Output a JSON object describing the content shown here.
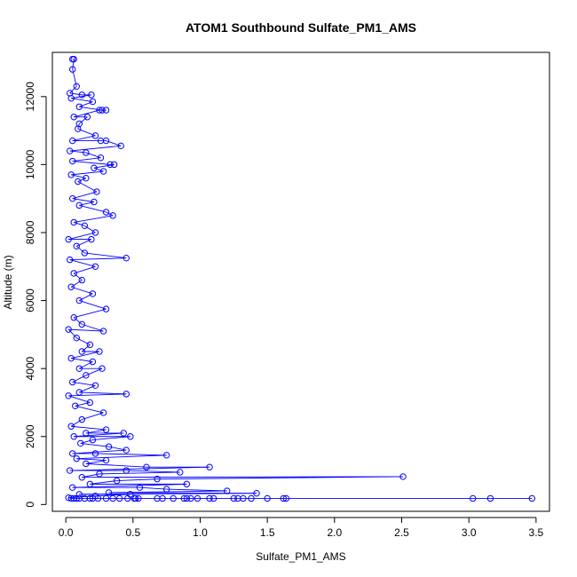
{
  "chart_data": {
    "type": "line",
    "title": "ATOM1 Southbound Sulfate_PM1_AMS",
    "xlabel": "Sulfate_PM1_AMS",
    "ylabel": "Altitude (m)",
    "xlim": [
      -0.1,
      3.6
    ],
    "ylim": [
      -200,
      13300
    ],
    "x_ticks": [
      0.0,
      0.5,
      1.0,
      1.5,
      2.0,
      2.5,
      3.0,
      3.5
    ],
    "x_tick_labels": [
      "0.0",
      "0.5",
      "1.0",
      "1.5",
      "2.0",
      "2.5",
      "3.0",
      "3.5"
    ],
    "y_ticks": [
      0,
      2000,
      4000,
      6000,
      8000,
      10000,
      12000
    ],
    "y_tick_labels": [
      "0",
      "2000",
      "4000",
      "6000",
      "8000",
      "10000",
      "12000"
    ],
    "grid": false,
    "legend": "none",
    "series_color": "#0000ff",
    "series": [
      {
        "marker": "open-circle",
        "points": [
          [
            0.05,
            13100
          ],
          [
            0.06,
            13100
          ],
          [
            0.05,
            12800
          ],
          [
            0.08,
            12300
          ],
          [
            0.03,
            12100
          ],
          [
            0.12,
            12050
          ],
          [
            0.19,
            12050
          ],
          [
            0.04,
            11950
          ],
          [
            0.2,
            11850
          ],
          [
            0.1,
            11700
          ],
          [
            0.27,
            11600
          ],
          [
            0.3,
            11600
          ],
          [
            0.25,
            11600
          ],
          [
            0.06,
            11400
          ],
          [
            0.16,
            11400
          ],
          [
            0.1,
            11200
          ],
          [
            0.09,
            11050
          ],
          [
            0.22,
            10850
          ],
          [
            0.05,
            10700
          ],
          [
            0.26,
            10700
          ],
          [
            0.3,
            10700
          ],
          [
            0.41,
            10550
          ],
          [
            0.03,
            10400
          ],
          [
            0.15,
            10350
          ],
          [
            0.26,
            10200
          ],
          [
            0.05,
            10100
          ],
          [
            0.33,
            10000
          ],
          [
            0.36,
            10000
          ],
          [
            0.21,
            9900
          ],
          [
            0.28,
            9800
          ],
          [
            0.04,
            9700
          ],
          [
            0.15,
            9600
          ],
          [
            0.09,
            9500
          ],
          [
            0.23,
            9200
          ],
          [
            0.05,
            9000
          ],
          [
            0.21,
            8900
          ],
          [
            0.1,
            8800
          ],
          [
            0.3,
            8600
          ],
          [
            0.35,
            8500
          ],
          [
            0.06,
            8300
          ],
          [
            0.14,
            8200
          ],
          [
            0.22,
            8000
          ],
          [
            0.02,
            7800
          ],
          [
            0.19,
            7800
          ],
          [
            0.08,
            7600
          ],
          [
            0.14,
            7400
          ],
          [
            0.45,
            7250
          ],
          [
            0.03,
            7200
          ],
          [
            0.22,
            7000
          ],
          [
            0.06,
            6800
          ],
          [
            0.12,
            6600
          ],
          [
            0.04,
            6400
          ],
          [
            0.2,
            6200
          ],
          [
            0.1,
            6000
          ],
          [
            0.3,
            5750
          ],
          [
            0.06,
            5500
          ],
          [
            0.12,
            5300
          ],
          [
            0.28,
            5100
          ],
          [
            0.02,
            5150
          ],
          [
            0.08,
            4900
          ],
          [
            0.18,
            4700
          ],
          [
            0.12,
            4500
          ],
          [
            0.25,
            4500
          ],
          [
            0.04,
            4300
          ],
          [
            0.2,
            4200
          ],
          [
            0.1,
            4000
          ],
          [
            0.27,
            4000
          ],
          [
            0.15,
            3800
          ],
          [
            0.05,
            3600
          ],
          [
            0.22,
            3500
          ],
          [
            0.1,
            3300
          ],
          [
            0.45,
            3250
          ],
          [
            0.02,
            3200
          ],
          [
            0.18,
            3000
          ],
          [
            0.07,
            2900
          ],
          [
            0.28,
            2700
          ],
          [
            0.12,
            2500
          ],
          [
            0.04,
            2300
          ],
          [
            0.3,
            2200
          ],
          [
            0.15,
            2100
          ],
          [
            0.43,
            2100
          ],
          [
            0.06,
            2000
          ],
          [
            0.48,
            2000
          ],
          [
            0.2,
            1900
          ],
          [
            0.11,
            1800
          ],
          [
            0.32,
            1700
          ],
          [
            0.45,
            1600
          ],
          [
            0.05,
            1500
          ],
          [
            0.22,
            1500
          ],
          [
            0.75,
            1450
          ],
          [
            0.08,
            1350
          ],
          [
            0.3,
            1300
          ],
          [
            0.15,
            1200
          ],
          [
            0.6,
            1100
          ],
          [
            1.07,
            1100
          ],
          [
            0.03,
            1000
          ],
          [
            0.45,
            1000
          ],
          [
            0.85,
            950
          ],
          [
            0.25,
            900
          ],
          [
            0.12,
            800
          ],
          [
            2.51,
            820
          ],
          [
            0.68,
            750
          ],
          [
            0.38,
            700
          ],
          [
            0.18,
            600
          ],
          [
            0.9,
            600
          ],
          [
            0.05,
            500
          ],
          [
            0.55,
            500
          ],
          [
            0.75,
            450
          ],
          [
            1.2,
            400
          ],
          [
            0.32,
            350
          ],
          [
            1.42,
            330
          ],
          [
            0.1,
            300
          ],
          [
            0.48,
            300
          ],
          [
            0.22,
            250
          ],
          [
            0.02,
            200
          ],
          [
            0.04,
            180
          ],
          [
            0.06,
            180
          ],
          [
            0.08,
            180
          ],
          [
            0.1,
            180
          ],
          [
            0.14,
            180
          ],
          [
            0.18,
            180
          ],
          [
            0.2,
            180
          ],
          [
            0.24,
            180
          ],
          [
            0.3,
            180
          ],
          [
            0.35,
            180
          ],
          [
            0.4,
            180
          ],
          [
            0.46,
            180
          ],
          [
            0.51,
            180
          ],
          [
            0.52,
            180
          ],
          [
            0.54,
            180
          ],
          [
            0.68,
            180
          ],
          [
            0.72,
            180
          ],
          [
            0.8,
            180
          ],
          [
            0.88,
            180
          ],
          [
            0.9,
            180
          ],
          [
            0.93,
            180
          ],
          [
            0.98,
            180
          ],
          [
            1.07,
            180
          ],
          [
            1.1,
            180
          ],
          [
            1.25,
            180
          ],
          [
            1.28,
            180
          ],
          [
            1.32,
            180
          ],
          [
            1.38,
            180
          ],
          [
            1.5,
            180
          ],
          [
            1.62,
            180
          ],
          [
            1.64,
            180
          ],
          [
            3.03,
            180
          ],
          [
            3.16,
            180
          ],
          [
            3.47,
            180
          ]
        ]
      }
    ]
  }
}
